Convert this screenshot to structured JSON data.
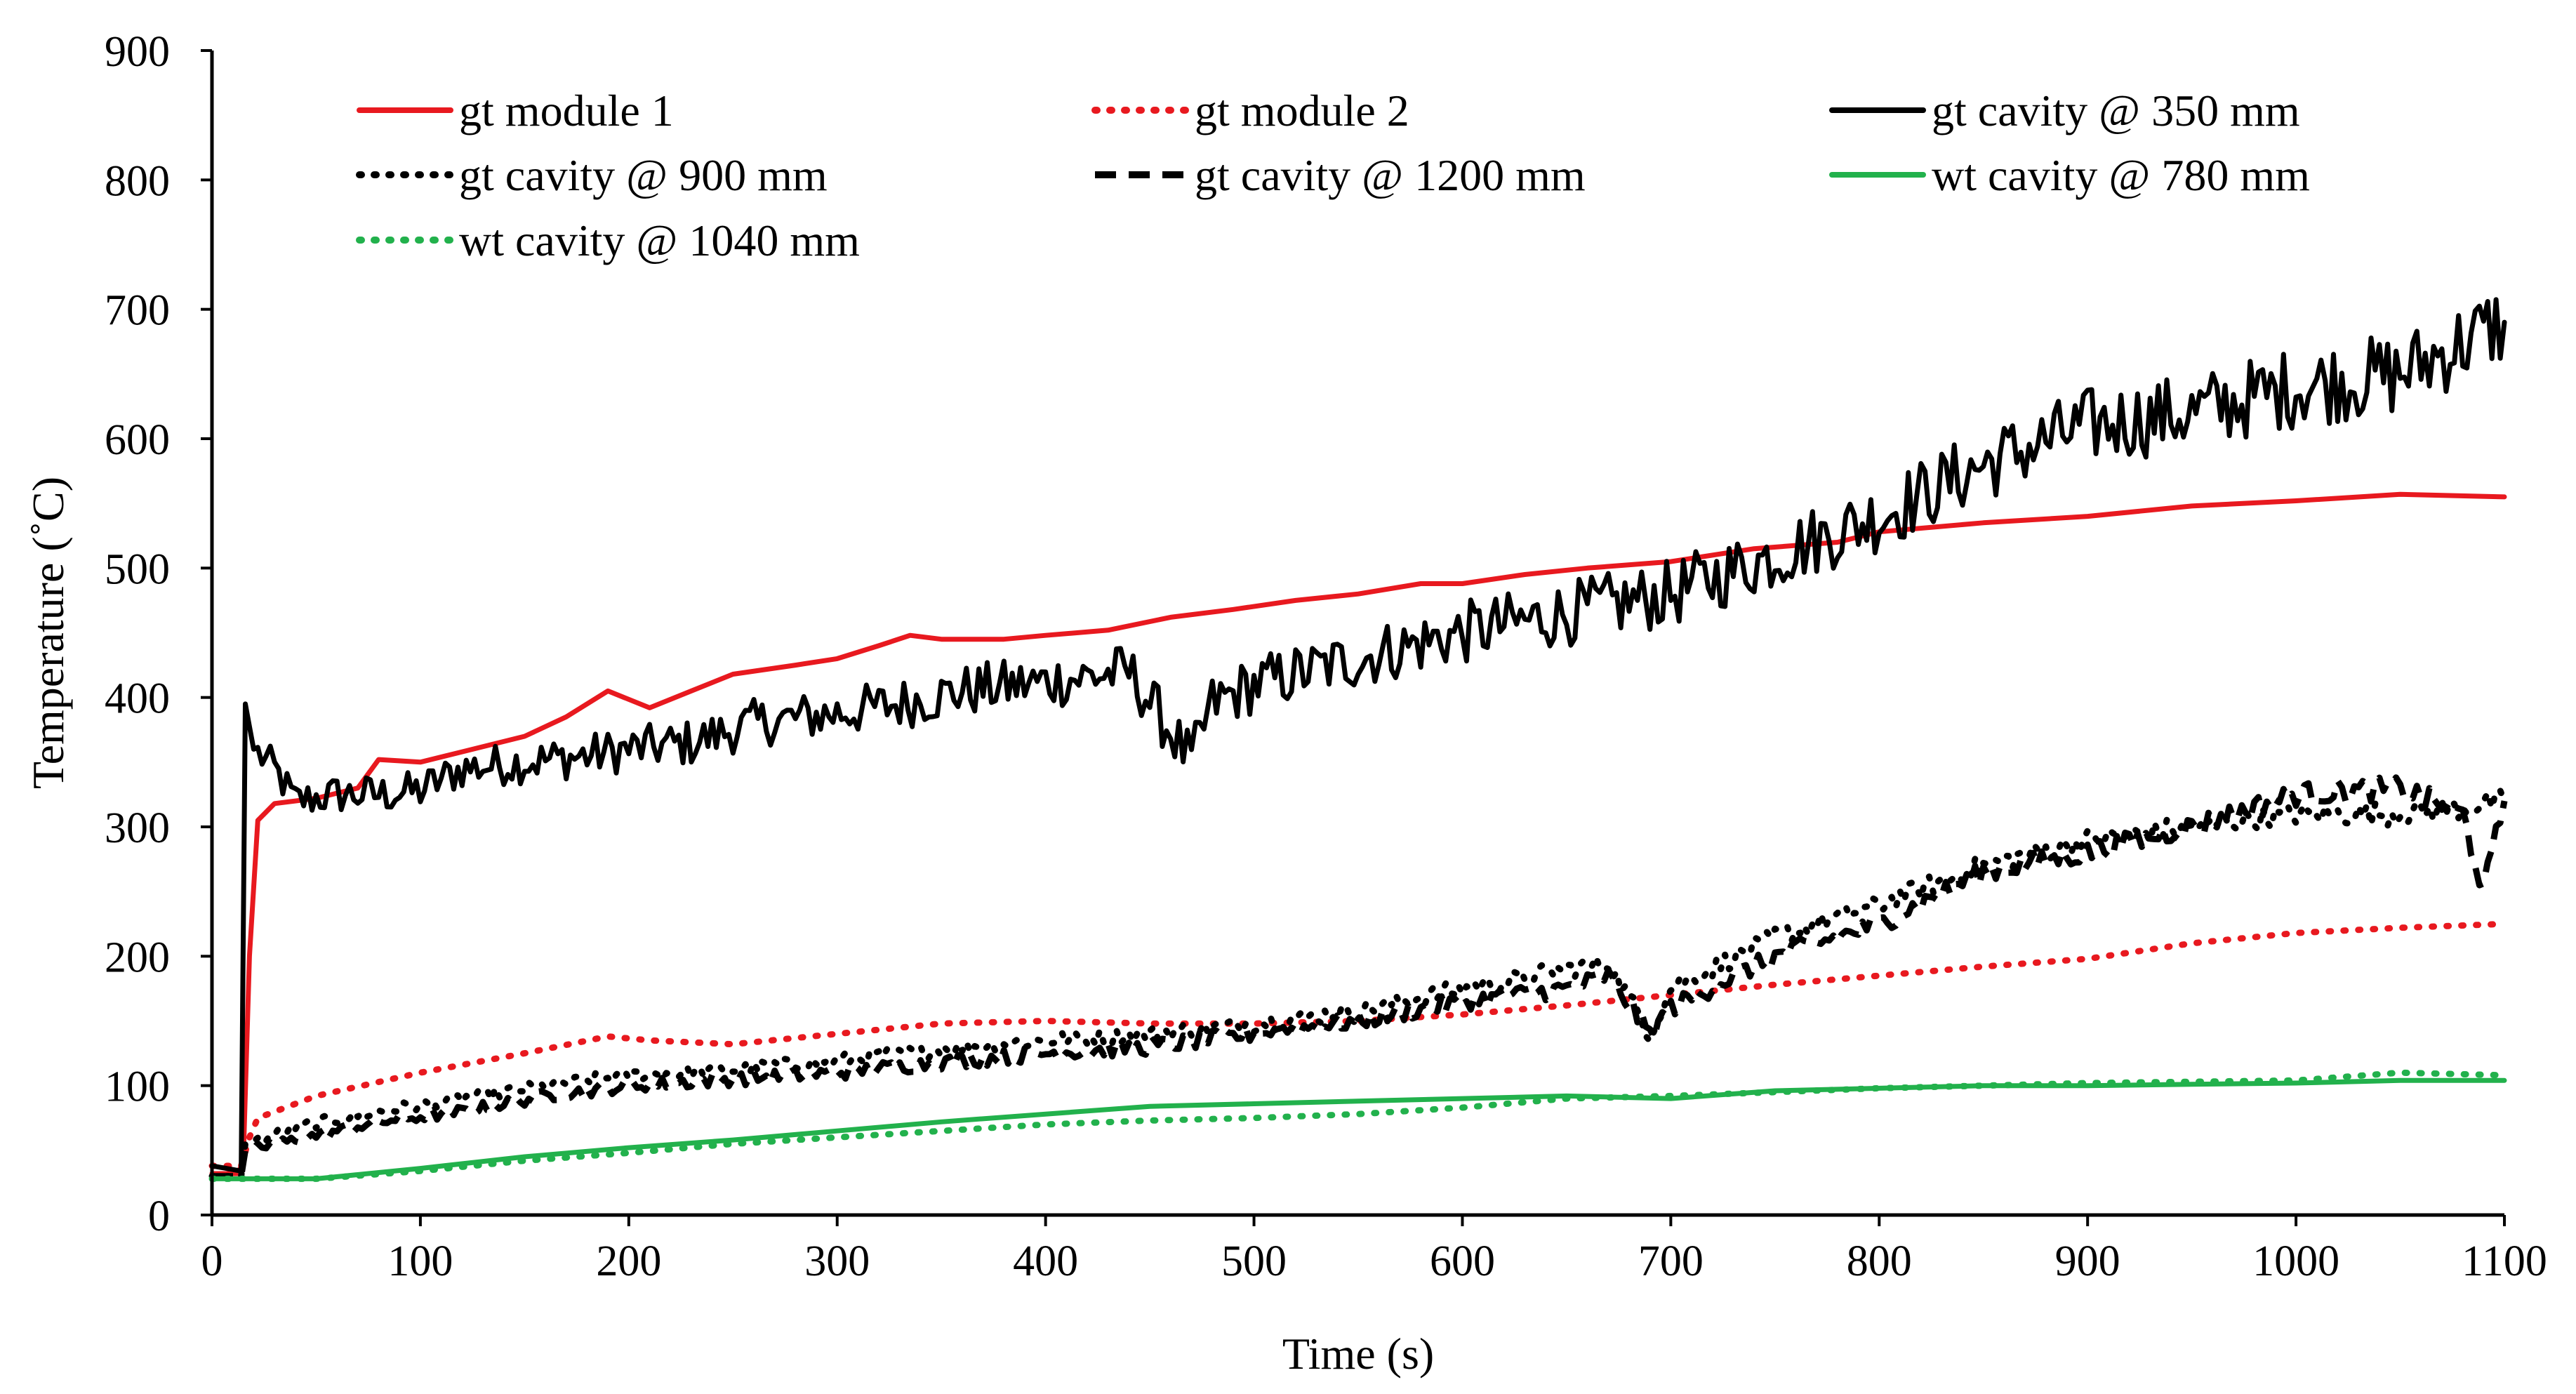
{
  "chart_data": {
    "type": "line",
    "title": "",
    "xlabel": "Time (s)",
    "ylabel": "Temperature (˚C)",
    "xlim": [
      0,
      1100
    ],
    "ylim": [
      0,
      900
    ],
    "xticks": [
      0,
      100,
      200,
      300,
      400,
      500,
      600,
      700,
      800,
      900,
      1000,
      1100
    ],
    "yticks": [
      0,
      100,
      200,
      300,
      400,
      500,
      600,
      700,
      800,
      900
    ],
    "grid": false,
    "legend_position": "top",
    "series": [
      {
        "name": "gt module 1",
        "color": "#e8191f",
        "style": "solid",
        "points": [
          [
            0,
            32
          ],
          [
            12,
            32
          ],
          [
            15,
            40
          ],
          [
            18,
            200
          ],
          [
            22,
            305
          ],
          [
            30,
            318
          ],
          [
            50,
            322
          ],
          [
            70,
            330
          ],
          [
            80,
            352
          ],
          [
            100,
            350
          ],
          [
            120,
            358
          ],
          [
            150,
            370
          ],
          [
            170,
            385
          ],
          [
            190,
            405
          ],
          [
            210,
            392
          ],
          [
            230,
            405
          ],
          [
            250,
            418
          ],
          [
            280,
            425
          ],
          [
            300,
            430
          ],
          [
            320,
            440
          ],
          [
            335,
            448
          ],
          [
            350,
            445
          ],
          [
            380,
            445
          ],
          [
            400,
            448
          ],
          [
            430,
            452
          ],
          [
            460,
            462
          ],
          [
            490,
            468
          ],
          [
            520,
            475
          ],
          [
            550,
            480
          ],
          [
            580,
            488
          ],
          [
            600,
            488
          ],
          [
            630,
            495
          ],
          [
            660,
            500
          ],
          [
            700,
            505
          ],
          [
            740,
            515
          ],
          [
            780,
            520
          ],
          [
            800,
            528
          ],
          [
            850,
            535
          ],
          [
            900,
            540
          ],
          [
            950,
            548
          ],
          [
            1000,
            552
          ],
          [
            1050,
            557
          ],
          [
            1100,
            555
          ]
        ]
      },
      {
        "name": "gt module 2",
        "color": "#e8191f",
        "style": "dotted",
        "points": [
          [
            0,
            38
          ],
          [
            14,
            38
          ],
          [
            18,
            60
          ],
          [
            22,
            75
          ],
          [
            50,
            92
          ],
          [
            100,
            110
          ],
          [
            150,
            125
          ],
          [
            190,
            138
          ],
          [
            210,
            135
          ],
          [
            250,
            132
          ],
          [
            300,
            140
          ],
          [
            350,
            148
          ],
          [
            400,
            150
          ],
          [
            450,
            148
          ],
          [
            500,
            148
          ],
          [
            550,
            150
          ],
          [
            600,
            155
          ],
          [
            650,
            162
          ],
          [
            700,
            170
          ],
          [
            750,
            178
          ],
          [
            800,
            185
          ],
          [
            850,
            192
          ],
          [
            900,
            198
          ],
          [
            950,
            210
          ],
          [
            1000,
            218
          ],
          [
            1050,
            222
          ],
          [
            1100,
            225
          ]
        ]
      },
      {
        "name": "gt cavity @ 350 mm",
        "color": "#000000",
        "style": "solid",
        "noise": 14,
        "points": [
          [
            0,
            38
          ],
          [
            14,
            34
          ],
          [
            16,
            395
          ],
          [
            20,
            360
          ],
          [
            30,
            345
          ],
          [
            40,
            320
          ],
          [
            60,
            325
          ],
          [
            80,
            325
          ],
          [
            100,
            328
          ],
          [
            120,
            345
          ],
          [
            150,
            350
          ],
          [
            180,
            355
          ],
          [
            200,
            360
          ],
          [
            230,
            365
          ],
          [
            260,
            380
          ],
          [
            300,
            388
          ],
          [
            330,
            395
          ],
          [
            360,
            405
          ],
          [
            400,
            412
          ],
          [
            440,
            420
          ],
          [
            470,
            350
          ],
          [
            480,
            395
          ],
          [
            500,
            410
          ],
          [
            550,
            430
          ],
          [
            600,
            450
          ],
          [
            640,
            462
          ],
          [
            700,
            480
          ],
          [
            750,
            510
          ],
          [
            800,
            540
          ],
          [
            850,
            580
          ],
          [
            900,
            610
          ],
          [
            950,
            620
          ],
          [
            1000,
            640
          ],
          [
            1050,
            650
          ],
          [
            1100,
            690
          ]
        ]
      },
      {
        "name": "gt cavity @ 900 mm",
        "color": "#000000",
        "style": "dotted",
        "noise": 4,
        "points": [
          [
            0,
            30
          ],
          [
            14,
            30
          ],
          [
            16,
            55
          ],
          [
            40,
            68
          ],
          [
            80,
            80
          ],
          [
            120,
            90
          ],
          [
            160,
            100
          ],
          [
            200,
            108
          ],
          [
            250,
            112
          ],
          [
            300,
            120
          ],
          [
            350,
            128
          ],
          [
            400,
            135
          ],
          [
            450,
            140
          ],
          [
            500,
            148
          ],
          [
            550,
            158
          ],
          [
            600,
            175
          ],
          [
            650,
            190
          ],
          [
            670,
            195
          ],
          [
            690,
            140
          ],
          [
            700,
            175
          ],
          [
            750,
            215
          ],
          [
            800,
            240
          ],
          [
            850,
            270
          ],
          [
            900,
            290
          ],
          [
            950,
            300
          ],
          [
            1000,
            310
          ],
          [
            1050,
            310
          ],
          [
            1080,
            315
          ],
          [
            1100,
            320
          ]
        ]
      },
      {
        "name": "gt cavity @ 1200 mm",
        "color": "#000000",
        "style": "dashed",
        "noise": 4,
        "points": [
          [
            0,
            30
          ],
          [
            14,
            30
          ],
          [
            16,
            50
          ],
          [
            40,
            58
          ],
          [
            80,
            72
          ],
          [
            120,
            80
          ],
          [
            160,
            92
          ],
          [
            200,
            100
          ],
          [
            250,
            105
          ],
          [
            300,
            110
          ],
          [
            350,
            118
          ],
          [
            400,
            125
          ],
          [
            450,
            130
          ],
          [
            500,
            140
          ],
          [
            550,
            150
          ],
          [
            600,
            165
          ],
          [
            650,
            175
          ],
          [
            670,
            185
          ],
          [
            690,
            140
          ],
          [
            700,
            160
          ],
          [
            750,
            200
          ],
          [
            800,
            225
          ],
          [
            850,
            265
          ],
          [
            900,
            280
          ],
          [
            950,
            300
          ],
          [
            1000,
            325
          ],
          [
            1050,
            330
          ],
          [
            1080,
            310
          ],
          [
            1090,
            250
          ],
          [
            1100,
            320
          ]
        ]
      },
      {
        "name": "wt cavity @ 780 mm",
        "color": "#22b14c",
        "style": "solid",
        "points": [
          [
            0,
            28
          ],
          [
            50,
            28
          ],
          [
            100,
            36
          ],
          [
            150,
            45
          ],
          [
            200,
            52
          ],
          [
            250,
            58
          ],
          [
            300,
            65
          ],
          [
            350,
            72
          ],
          [
            400,
            78
          ],
          [
            450,
            84
          ],
          [
            500,
            86
          ],
          [
            550,
            88
          ],
          [
            600,
            90
          ],
          [
            650,
            92
          ],
          [
            700,
            90
          ],
          [
            750,
            96
          ],
          [
            800,
            98
          ],
          [
            850,
            100
          ],
          [
            900,
            100
          ],
          [
            950,
            101
          ],
          [
            1000,
            102
          ],
          [
            1050,
            104
          ],
          [
            1100,
            104
          ]
        ]
      },
      {
        "name": "wt cavity @ 1040 mm",
        "color": "#22b14c",
        "style": "dotted",
        "points": [
          [
            0,
            28
          ],
          [
            50,
            28
          ],
          [
            100,
            34
          ],
          [
            150,
            42
          ],
          [
            200,
            48
          ],
          [
            250,
            55
          ],
          [
            300,
            60
          ],
          [
            350,
            65
          ],
          [
            400,
            70
          ],
          [
            450,
            73
          ],
          [
            500,
            75
          ],
          [
            550,
            78
          ],
          [
            600,
            83
          ],
          [
            650,
            90
          ],
          [
            700,
            92
          ],
          [
            750,
            95
          ],
          [
            800,
            98
          ],
          [
            850,
            100
          ],
          [
            900,
            102
          ],
          [
            950,
            103
          ],
          [
            1000,
            104
          ],
          [
            1050,
            110
          ],
          [
            1100,
            108
          ]
        ]
      }
    ]
  }
}
